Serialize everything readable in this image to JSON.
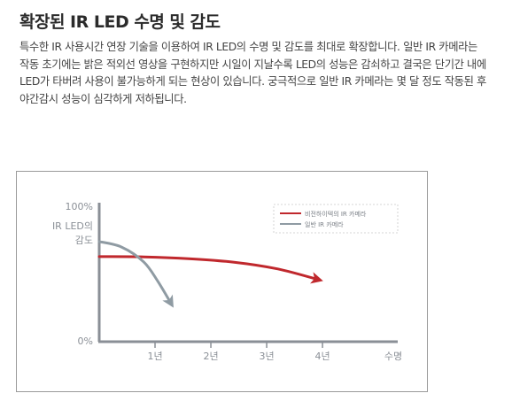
{
  "title": "확장된 IR LED 수명 및 감도",
  "description": "특수한 IR 사용시간 연장 기술을 이용하여 IR LED의 수명 및 감도를 최대로 확장합니다. 일반 IR 카메라는 작동 초기에는 밝은 적외선 영상을 구현하지만 시일이 지날수록 LED의 성능은 감쇠하고 결국은 단기간 내에 LED가 타버려 사용이 불가능하게 되는 현상이 있습니다. 궁극적으로 일반 IR 카메라는 몇 달 정도 작동된 후 야간감시 성능이 심각하게 저하됩니다.",
  "chart_data": {
    "type": "line",
    "ylabel_line1": "IR LED의",
    "ylabel_line2": "감도",
    "xlabel": "수명",
    "y_ticks": [
      "100%",
      "0%"
    ],
    "x_ticks": [
      "1년",
      "2년",
      "3년",
      "4년"
    ],
    "xlim": [
      0,
      5
    ],
    "ylim": [
      0,
      100
    ],
    "grid": false,
    "legend_position": "top-right",
    "series": [
      {
        "name": "비전하이텍의 IR 카메라",
        "color": "#c0282d",
        "points": [
          [
            0,
            62
          ],
          [
            0.8,
            61.8
          ],
          [
            1.6,
            60.5
          ],
          [
            2.4,
            58
          ],
          [
            3.2,
            53
          ],
          [
            3.95,
            45
          ]
        ]
      },
      {
        "name": "일반 IR 카메라",
        "color": "#8f9ba3",
        "points": [
          [
            0,
            73
          ],
          [
            0.4,
            69
          ],
          [
            0.8,
            58
          ],
          [
            1.05,
            44
          ],
          [
            1.3,
            27
          ]
        ]
      }
    ]
  }
}
